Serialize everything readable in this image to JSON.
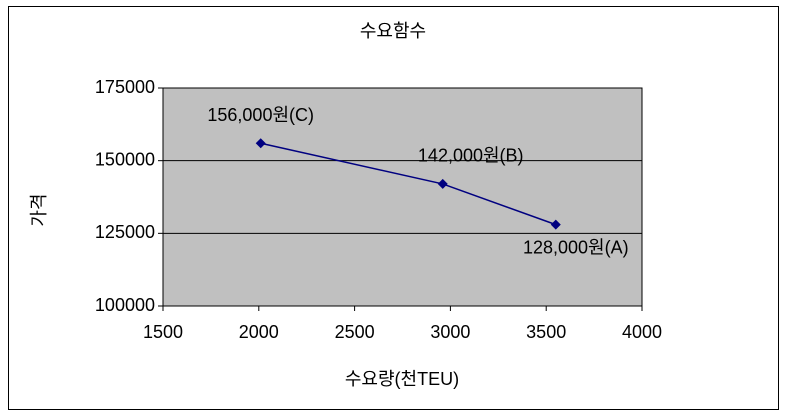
{
  "chart_data": {
    "type": "scatter",
    "title": "수요함수",
    "x_label": "수요량(천TEU)",
    "y_label": "가격",
    "x": [
      2010,
      2960,
      3550
    ],
    "values": [
      156000,
      142000,
      128000
    ],
    "value_labels": [
      "156,000원(C)",
      "142,000원(B)",
      "128,000원(A)"
    ],
    "color": "#000080",
    "xlim": [
      1500,
      4000
    ],
    "xticks": [
      1500,
      2000,
      2500,
      3000,
      3500,
      4000
    ],
    "ylim": [
      100000,
      175000
    ],
    "yticks": [
      100000,
      125000,
      150000,
      175000
    ],
    "grid": true
  }
}
